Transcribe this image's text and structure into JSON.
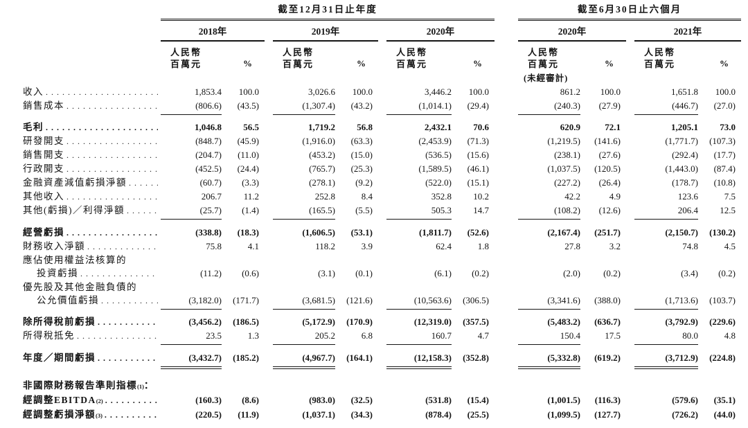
{
  "table": {
    "header": {
      "group_annual": "截至12月31日止年度",
      "group_interim": "截至6月30日止六個月",
      "years_annual": [
        "2018年",
        "2019年",
        "2020年"
      ],
      "years_interim": [
        "2020年",
        "2021年"
      ],
      "unit_line1": "人民幣",
      "unit_line2": "百萬元",
      "pct_label": "%",
      "unaudited": "(未經審計)"
    },
    "rows": [
      {
        "label": "收入",
        "dots": true,
        "bold": false,
        "indent": false,
        "rule": "none",
        "gap": 0,
        "values": [
          "1,853.4",
          "100.0",
          "3,026.6",
          "100.0",
          "3,446.2",
          "100.0",
          "861.2",
          "100.0",
          "1,651.8",
          "100.0"
        ]
      },
      {
        "label": "銷售成本",
        "dots": true,
        "bold": false,
        "indent": false,
        "rule": "single",
        "gap": 0,
        "values": [
          "(806.6)",
          "(43.5)",
          "(1,307.4)",
          "(43.2)",
          "(1,014.1)",
          "(29.4)",
          "(240.3)",
          "(27.9)",
          "(446.7)",
          "(27.0)"
        ]
      },
      {
        "label": "毛利",
        "dots": true,
        "bold": true,
        "indent": false,
        "rule": "none",
        "gap": 8,
        "values": [
          "1,046.8",
          "56.5",
          "1,719.2",
          "56.8",
          "2,432.1",
          "70.6",
          "620.9",
          "72.1",
          "1,205.1",
          "73.0"
        ]
      },
      {
        "label": "研發開支",
        "dots": true,
        "bold": false,
        "indent": false,
        "rule": "none",
        "gap": 0,
        "values": [
          "(848.7)",
          "(45.9)",
          "(1,916.0)",
          "(63.3)",
          "(2,453.9)",
          "(71.3)",
          "(1,219.5)",
          "(141.6)",
          "(1,771.7)",
          "(107.3)"
        ]
      },
      {
        "label": "銷售開支",
        "dots": true,
        "bold": false,
        "indent": false,
        "rule": "none",
        "gap": 0,
        "values": [
          "(204.7)",
          "(11.0)",
          "(453.2)",
          "(15.0)",
          "(536.5)",
          "(15.6)",
          "(238.1)",
          "(27.6)",
          "(292.4)",
          "(17.7)"
        ]
      },
      {
        "label": "行政開支",
        "dots": true,
        "bold": false,
        "indent": false,
        "rule": "none",
        "gap": 0,
        "values": [
          "(452.5)",
          "(24.4)",
          "(765.7)",
          "(25.3)",
          "(1,589.5)",
          "(46.1)",
          "(1,037.5)",
          "(120.5)",
          "(1,443.0)",
          "(87.4)"
        ]
      },
      {
        "label": "金融資產減值虧損淨額",
        "dots": true,
        "bold": false,
        "indent": false,
        "rule": "none",
        "gap": 0,
        "values": [
          "(60.7)",
          "(3.3)",
          "(278.1)",
          "(9.2)",
          "(522.0)",
          "(15.1)",
          "(227.2)",
          "(26.4)",
          "(178.7)",
          "(10.8)"
        ]
      },
      {
        "label": "其他收入",
        "dots": true,
        "bold": false,
        "indent": false,
        "rule": "none",
        "gap": 0,
        "values": [
          "206.7",
          "11.2",
          "252.8",
          "8.4",
          "352.8",
          "10.2",
          "42.2",
          "4.9",
          "123.6",
          "7.5"
        ]
      },
      {
        "label": "其他(虧損)／利得淨額",
        "dots": true,
        "bold": false,
        "indent": false,
        "rule": "single",
        "gap": 0,
        "values": [
          "(25.7)",
          "(1.4)",
          "(165.5)",
          "(5.5)",
          "505.3",
          "14.7",
          "(108.2)",
          "(12.6)",
          "206.4",
          "12.5"
        ]
      },
      {
        "label": "經營虧損",
        "dots": true,
        "bold": true,
        "indent": false,
        "rule": "none",
        "gap": 9,
        "values": [
          "(338.8)",
          "(18.3)",
          "(1,606.5)",
          "(53.1)",
          "(1,811.7)",
          "(52.6)",
          "(2,167.4)",
          "(251.7)",
          "(2,150.7)",
          "(130.2)"
        ]
      },
      {
        "label": "財務收入淨額",
        "dots": true,
        "bold": false,
        "indent": false,
        "rule": "none",
        "gap": 0,
        "values": [
          "75.8",
          "4.1",
          "118.2",
          "3.9",
          "62.4",
          "1.8",
          "27.8",
          "3.2",
          "74.8",
          "4.5"
        ]
      },
      {
        "label": "應佔使用權益法核算的",
        "dots": false,
        "bold": false,
        "indent": false,
        "rule": "none",
        "gap": 0,
        "values": null
      },
      {
        "label": "投資虧損",
        "dots": true,
        "bold": false,
        "indent": true,
        "rule": "none",
        "gap": 0,
        "values": [
          "(11.2)",
          "(0.6)",
          "(3.1)",
          "(0.1)",
          "(6.1)",
          "(0.2)",
          "(2.0)",
          "(0.2)",
          "(3.4)",
          "(0.2)"
        ]
      },
      {
        "label": "優先股及其他金融負債的",
        "dots": false,
        "bold": false,
        "indent": false,
        "rule": "none",
        "gap": 0,
        "values": null
      },
      {
        "label": "公允價值虧損",
        "dots": true,
        "bold": false,
        "indent": true,
        "rule": "single",
        "gap": 0,
        "values": [
          "(3,182.0)",
          "(171.7)",
          "(3,681.5)",
          "(121.6)",
          "(10,563.6)",
          "(306.5)",
          "(3,341.6)",
          "(388.0)",
          "(1,713.6)",
          "(103.7)"
        ]
      },
      {
        "label": "除所得稅前虧損",
        "dots": true,
        "bold": true,
        "indent": false,
        "rule": "none",
        "gap": 8,
        "values": [
          "(3,456.2)",
          "(186.5)",
          "(5,172.9)",
          "(170.9)",
          "(12,319.0)",
          "(357.5)",
          "(5,483.2)",
          "(636.7)",
          "(3,792.9)",
          "(229.6)"
        ]
      },
      {
        "label": "所得稅抵免",
        "dots": true,
        "bold": false,
        "indent": false,
        "rule": "single",
        "gap": 0,
        "values": [
          "23.5",
          "1.3",
          "205.2",
          "6.8",
          "160.7",
          "4.7",
          "150.4",
          "17.5",
          "80.0",
          "4.8"
        ]
      },
      {
        "label": "年度／期間虧損",
        "dots": true,
        "bold": true,
        "indent": false,
        "rule": "double",
        "gap": 9,
        "values": [
          "(3,432.7)",
          "(185.2)",
          "(4,967.7)",
          "(164.1)",
          "(12,158.3)",
          "(352.8)",
          "(5,332.8)",
          "(619.2)",
          "(3,712.9)",
          "(224.8)"
        ]
      },
      {
        "label": "非國際財務報告準則指標",
        "sup": "(1)",
        "after": "：",
        "dots": false,
        "bold": true,
        "indent": false,
        "rule": "none",
        "gap": 16,
        "values": null
      },
      {
        "label": "經調整EBITDA",
        "sup": "(2)",
        "dots": true,
        "bold": true,
        "indent": false,
        "rule": "none",
        "gap": 0,
        "values": [
          "(160.3)",
          "(8.6)",
          "(983.0)",
          "(32.5)",
          "(531.8)",
          "(15.4)",
          "(1,001.5)",
          "(116.3)",
          "(579.6)",
          "(35.1)"
        ]
      },
      {
        "label": "經調整虧損淨額",
        "sup": "(3)",
        "dots": true,
        "bold": true,
        "indent": false,
        "rule": "none",
        "gap": 0,
        "values": [
          "(220.5)",
          "(11.9)",
          "(1,037.1)",
          "(34.3)",
          "(878.4)",
          "(25.5)",
          "(1,099.5)",
          "(127.7)",
          "(726.2)",
          "(44.0)"
        ]
      }
    ]
  }
}
